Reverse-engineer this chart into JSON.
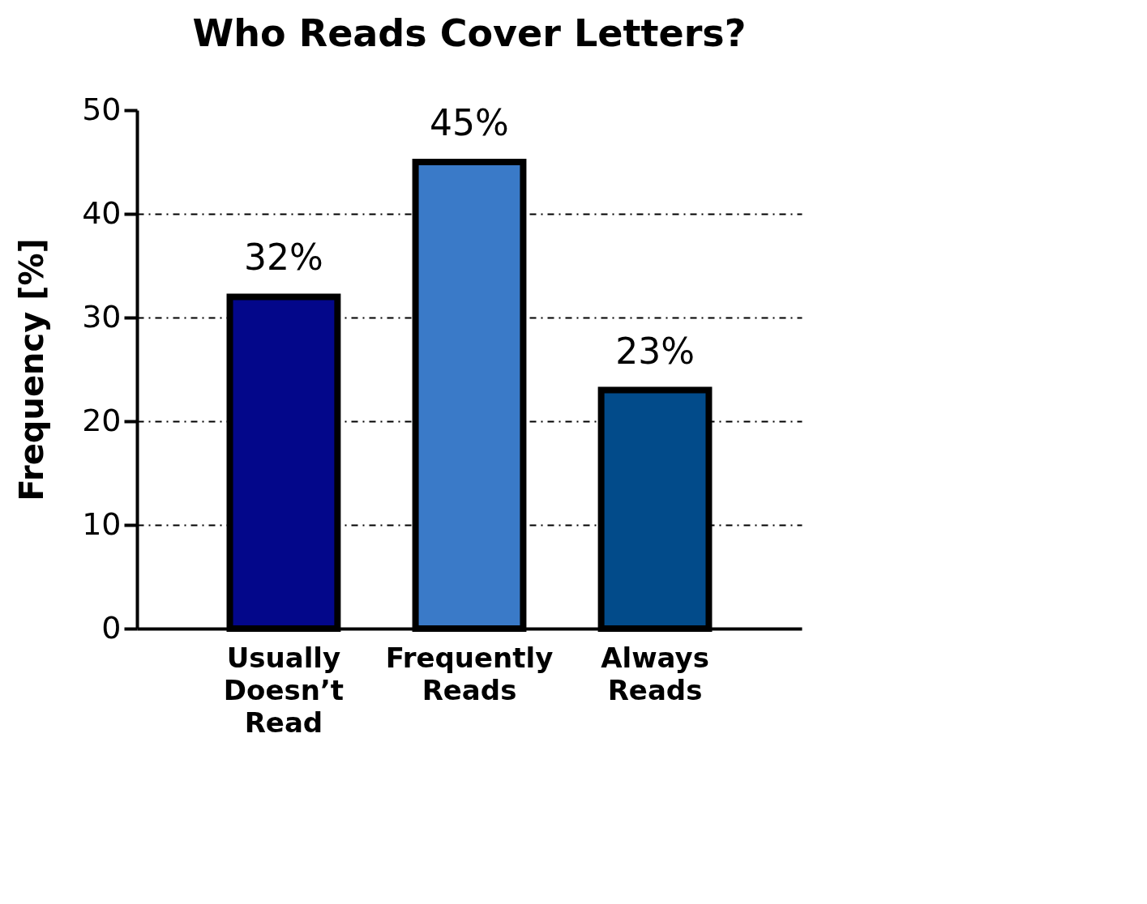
{
  "chart_data": {
    "type": "bar",
    "title": "Who Reads Cover Letters?",
    "ylabel": "Frequency [%]",
    "categories": [
      "Usually Doesn’t Read",
      "Frequently Reads",
      "Always Reads"
    ],
    "values": [
      32,
      45,
      23
    ],
    "colors": [
      "#03078a",
      "#3a7ac8",
      "#024b8a"
    ],
    "value_labels": [
      "32%",
      "45%",
      "23%"
    ],
    "ylim": [
      0,
      50
    ],
    "yticks": [
      0,
      10,
      20,
      30,
      40,
      50
    ],
    "grid": "y"
  }
}
